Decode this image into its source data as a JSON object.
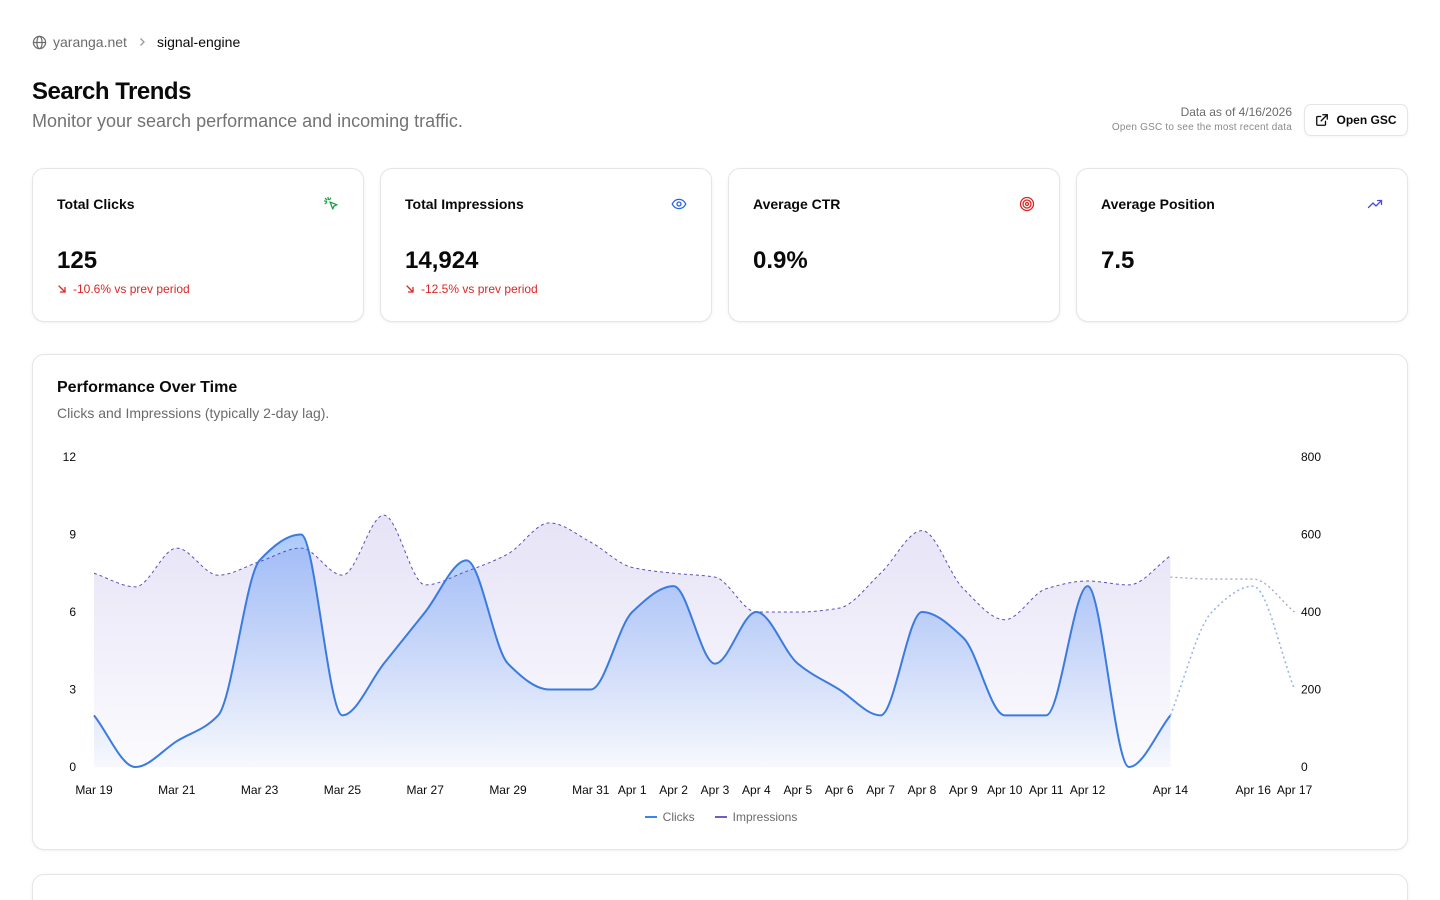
{
  "breadcrumb": {
    "site": "yaranga.net",
    "project": "signal-engine"
  },
  "header": {
    "title": "Search Trends",
    "subtitle": "Monitor your search performance and incoming traffic.",
    "data_asof": "Data as of 4/16/2026",
    "data_hint": "Open GSC to see the most recent data",
    "open_gsc_label": "Open GSC"
  },
  "stats": [
    {
      "label": "Total Clicks",
      "value": "125",
      "delta": "-10.6% vs prev period",
      "icon": "cursor-click-icon",
      "icon_color": "#16a34a"
    },
    {
      "label": "Total Impressions",
      "value": "14,924",
      "delta": "-12.5% vs prev period",
      "icon": "eye-icon",
      "icon_color": "#2563eb"
    },
    {
      "label": "Average CTR",
      "value": "0.9%",
      "delta": "",
      "icon": "target-icon",
      "icon_color": "#dc2626"
    },
    {
      "label": "Average Position",
      "value": "7.5",
      "delta": "",
      "icon": "trending-up-icon",
      "icon_color": "#4f46e5"
    }
  ],
  "colors": {
    "negative": "#dc2626",
    "clicks": "#3b82f6",
    "impressions": "#6d5fc7"
  },
  "chart": {
    "title": "Performance Over Time",
    "subtitle": "Clicks and Impressions (typically 2-day lag)."
  },
  "chart_data": {
    "type": "area",
    "x": [
      "2026-03-19",
      "2026-03-20",
      "2026-03-21",
      "2026-03-22",
      "2026-03-23",
      "2026-03-24",
      "2026-03-25",
      "2026-03-26",
      "2026-03-27",
      "2026-03-28",
      "2026-03-29",
      "2026-03-30",
      "2026-03-31",
      "2026-04-01",
      "2026-04-02",
      "2026-04-03",
      "2026-04-04",
      "2026-04-05",
      "2026-04-06",
      "2026-04-07",
      "2026-04-08",
      "2026-04-09",
      "2026-04-10",
      "2026-04-11",
      "2026-04-12",
      "2026-04-13",
      "2026-04-14",
      "2026-04-15",
      "2026-04-16",
      "2026-04-17"
    ],
    "tick_labels": [
      "Mar 19",
      "Mar 21",
      "Mar 23",
      "Mar 25",
      "Mar 27",
      "Mar 29",
      "Mar 31",
      "Apr 1",
      "Apr 2",
      "Apr 3",
      "Apr 4",
      "Apr 5",
      "Apr 6",
      "Apr 7",
      "Apr 8",
      "Apr 9",
      "Apr 10",
      "Apr 11",
      "Apr 12",
      "Apr 14",
      "Apr 16",
      "Apr 17"
    ],
    "series": [
      {
        "name": "Clicks",
        "axis": "left",
        "values": [
          2,
          0,
          1,
          2,
          8,
          9,
          2,
          4,
          6,
          8,
          4,
          3,
          3,
          6,
          7,
          4,
          6,
          4,
          3,
          2,
          6,
          5,
          2,
          2,
          7,
          0,
          2,
          null,
          null,
          null
        ],
        "projected": [
          null,
          null,
          null,
          null,
          null,
          null,
          null,
          null,
          null,
          null,
          null,
          null,
          null,
          null,
          null,
          null,
          null,
          null,
          null,
          null,
          null,
          null,
          null,
          null,
          null,
          null,
          2,
          6,
          7,
          3
        ]
      },
      {
        "name": "Impressions",
        "axis": "right",
        "values": [
          500,
          465,
          565,
          495,
          530,
          565,
          495,
          650,
          470,
          505,
          550,
          630,
          580,
          515,
          500,
          490,
          400,
          400,
          410,
          500,
          610,
          460,
          380,
          460,
          480,
          470,
          545,
          null,
          null,
          null
        ],
        "projected": [
          null,
          null,
          null,
          null,
          null,
          null,
          null,
          null,
          null,
          null,
          null,
          null,
          null,
          null,
          null,
          null,
          null,
          null,
          null,
          null,
          null,
          null,
          null,
          null,
          null,
          null,
          490,
          485,
          485,
          400
        ]
      }
    ],
    "y_left": {
      "ticks": [
        0,
        3,
        6,
        9,
        12
      ],
      "range": [
        0,
        12
      ]
    },
    "y_right": {
      "ticks": [
        0,
        200,
        400,
        600,
        800
      ],
      "range": [
        0,
        800
      ]
    },
    "legend": "bottom-center",
    "grid": false
  }
}
